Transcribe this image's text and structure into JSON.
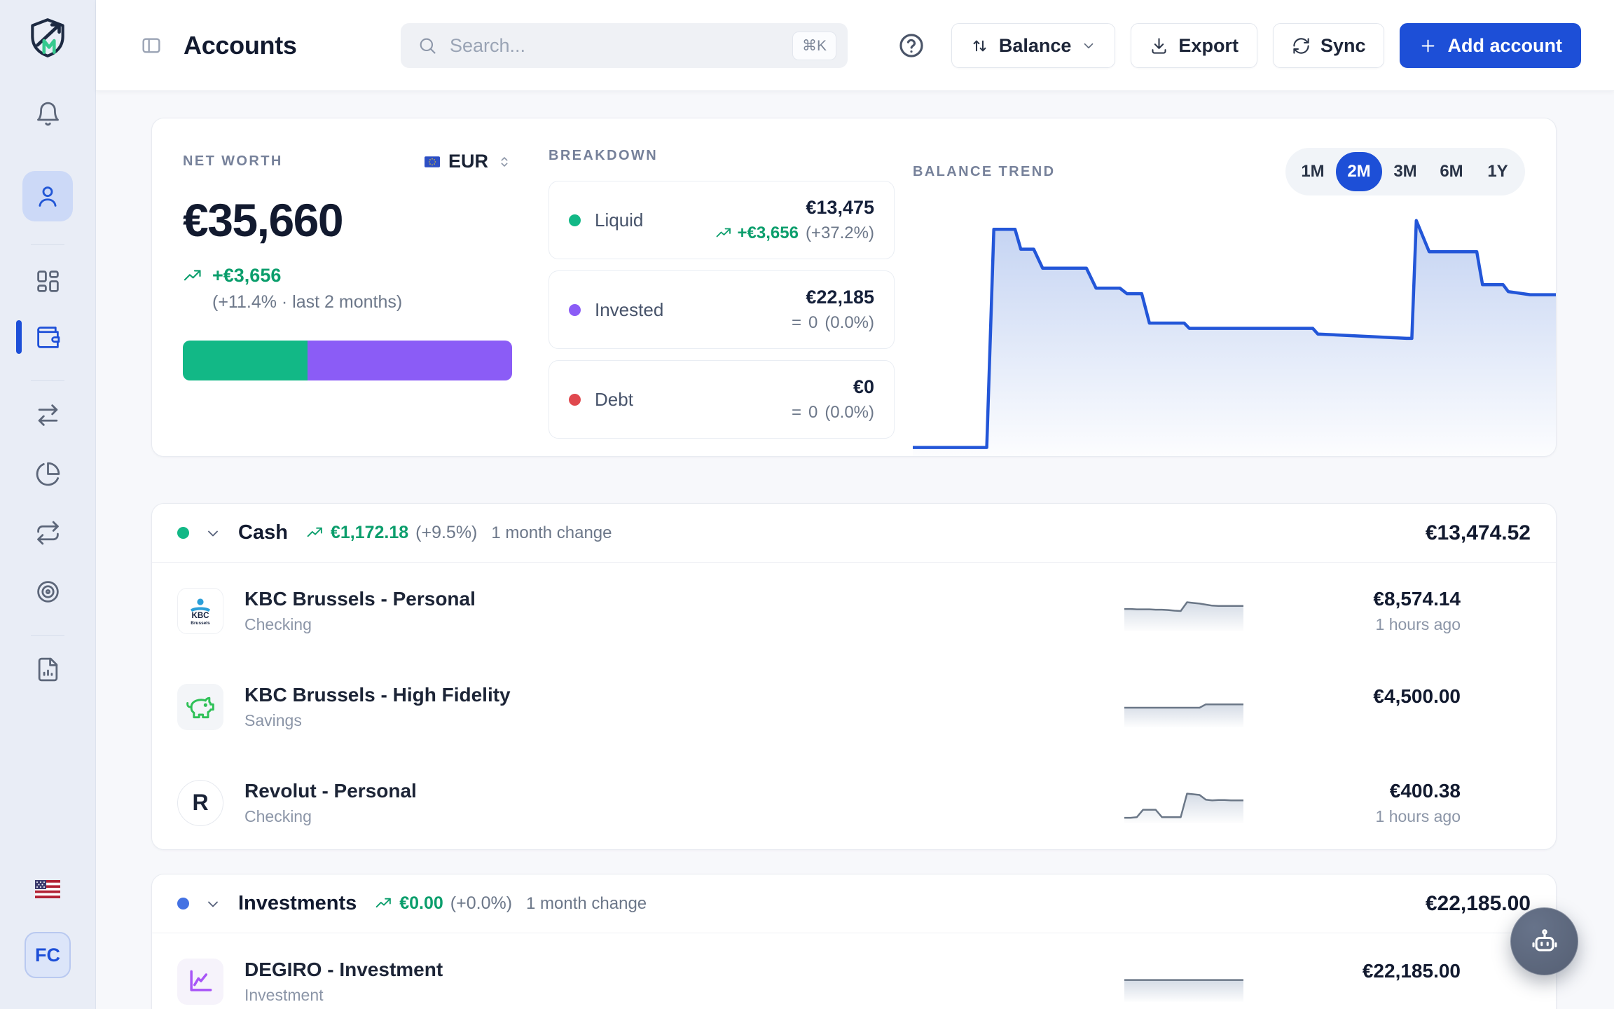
{
  "header": {
    "title": "Accounts",
    "search": {
      "placeholder": "Search...",
      "shortcut": "⌘K"
    },
    "sort_button": "Balance",
    "export_button": "Export",
    "sync_button": "Sync",
    "add_account_button": "Add account"
  },
  "sidebar": {
    "items": [
      "notifications",
      "profile",
      "dashboard",
      "accounts",
      "transactions",
      "allocation",
      "recurring",
      "goals",
      "reports"
    ],
    "active_item": "accounts",
    "avatar_initials": "FC"
  },
  "colors": {
    "accent_blue": "#1d4fd7",
    "chart_blue": "#2356d8",
    "positive_green": "#0b9e6c",
    "liquid_green": "#12b886",
    "invested_purple": "#8b5cf6",
    "debt_red": "#e0484e",
    "investments_dot_blue": "#4472e3",
    "spark_gray": "#6b7787"
  },
  "net_worth": {
    "label": "NET WORTH",
    "currency_code": "EUR",
    "value": "€35,660",
    "change": "+€3,656",
    "change_detail": "(+11.4% · last 2 months)",
    "allocation": {
      "liquid_width": "37.8%",
      "invested_width": "62.2%",
      "liquid_color": "#12b886",
      "invested_color": "#8b5cf6"
    }
  },
  "breakdown": {
    "label": "BREAKDOWN",
    "items": [
      {
        "name": "Liquid",
        "dot_color": "#12b886",
        "value": "€13,475",
        "change": "+€3,656",
        "change_pct": "(+37.2%)",
        "trend": "up"
      },
      {
        "name": "Invested",
        "dot_color": "#8b5cf6",
        "value": "€22,185",
        "change_symbol": "=",
        "change": "0",
        "change_pct": "(0.0%)",
        "trend": "flat"
      },
      {
        "name": "Debt",
        "dot_color": "#e0484e",
        "value": "€0",
        "change_symbol": "=",
        "change": "0",
        "change_pct": "(0.0%)",
        "trend": "flat"
      }
    ]
  },
  "balance_trend": {
    "label": "BALANCE TREND",
    "periods": [
      "1M",
      "2M",
      "3M",
      "6M",
      "1Y"
    ],
    "active_period": "2M"
  },
  "sections": [
    {
      "title": "Cash",
      "dot_color": "#12b886",
      "change": "€1,172.18",
      "change_pct": "(+9.5%)",
      "change_caption": "1 month change",
      "total": "€13,474.52",
      "accounts": [
        {
          "name": "KBC Brussels - Personal",
          "type": "Checking",
          "balance": "€8,574.14",
          "updated": "1 hours ago"
        },
        {
          "name": "KBC Brussels - High Fidelity",
          "type": "Savings",
          "balance": "€4,500.00",
          "updated": ""
        },
        {
          "name": "Revolut - Personal",
          "type": "Checking",
          "balance": "€400.38",
          "updated": "1 hours ago"
        }
      ]
    },
    {
      "title": "Investments",
      "dot_color": "#4472e3",
      "change": "€0.00",
      "change_pct": "(+0.0%)",
      "change_caption": "1 month change",
      "total": "€22,185.00",
      "accounts": [
        {
          "name": "DEGIRO - Investment",
          "type": "Investment",
          "balance": "€22,185.00",
          "updated": ""
        }
      ]
    }
  ],
  "logos": {
    "kbc_line1": "KBC",
    "kbc_line2": "Brussels",
    "revolut": "R"
  },
  "chart_data": [
    {
      "type": "area",
      "title": "BALANCE TREND",
      "active_period": "2M",
      "x_axis": {
        "visible": false,
        "window": "last 2 months",
        "unit": "% of window"
      },
      "y_axis": {
        "visible": false,
        "estimated_range_eur": [
          0,
          14000
        ]
      },
      "y_max": 14000,
      "line_color": "#2356d8",
      "fill_color": "#b9cbf0",
      "series": [
        {
          "name": "Balance (EUR, estimated)",
          "points": [
            [
              0,
              300
            ],
            [
              11.5,
              300
            ],
            [
              12.6,
              12900
            ],
            [
              15.9,
              12900
            ],
            [
              16.8,
              11750
            ],
            [
              18.8,
              11750
            ],
            [
              20.2,
              10650
            ],
            [
              27,
              10650
            ],
            [
              28.5,
              9500
            ],
            [
              32.2,
              9500
            ],
            [
              33.3,
              9180
            ],
            [
              35.6,
              9180
            ],
            [
              36.8,
              7480
            ],
            [
              42.2,
              7480
            ],
            [
              43,
              7180
            ],
            [
              62.2,
              7180
            ],
            [
              63,
              6850
            ],
            [
              76.8,
              6600
            ],
            [
              77.6,
              6600
            ],
            [
              78.3,
              13400
            ],
            [
              80.3,
              11600
            ],
            [
              87.7,
              11600
            ],
            [
              88.6,
              9700
            ],
            [
              91.8,
              9700
            ],
            [
              92.6,
              9300
            ],
            [
              96,
              9120
            ],
            [
              100,
              9120
            ]
          ]
        }
      ]
    },
    {
      "type": "line",
      "title": "KBC Brussels - Personal sparkline",
      "y_max": 100,
      "line_color": "#6b7787",
      "fill_color": "#cdd5e1",
      "values": [
        56,
        56,
        55,
        55,
        55,
        54,
        54,
        53,
        51,
        50,
        76,
        74,
        72,
        69,
        66,
        65,
        65,
        65,
        65,
        65
      ]
    },
    {
      "type": "line",
      "title": "KBC Brussels - High Fidelity sparkline",
      "y_max": 100,
      "line_color": "#6b7787",
      "fill_color": "#cdd5e1",
      "values": [
        48,
        48,
        48,
        48,
        48,
        48,
        48,
        48,
        48,
        48,
        48,
        48,
        48,
        58,
        58,
        58,
        58,
        58,
        58,
        58
      ]
    },
    {
      "type": "line",
      "title": "Revolut - Personal sparkline",
      "y_max": 100,
      "line_color": "#6b7787",
      "fill_color": "#cdd5e1",
      "values": [
        6,
        6,
        8,
        30,
        30,
        30,
        8,
        8,
        8,
        8,
        78,
        76,
        74,
        60,
        58,
        59,
        59,
        58,
        58,
        58
      ]
    },
    {
      "type": "line",
      "title": "DEGIRO - Investment sparkline",
      "y_max": 100,
      "line_color": "#6b7787",
      "fill_color": "#cdd5e1",
      "values": [
        55,
        55,
        55,
        55,
        55,
        55,
        55,
        55,
        55,
        55,
        55,
        55,
        55,
        55,
        55,
        55,
        55,
        55,
        55,
        55
      ]
    }
  ]
}
